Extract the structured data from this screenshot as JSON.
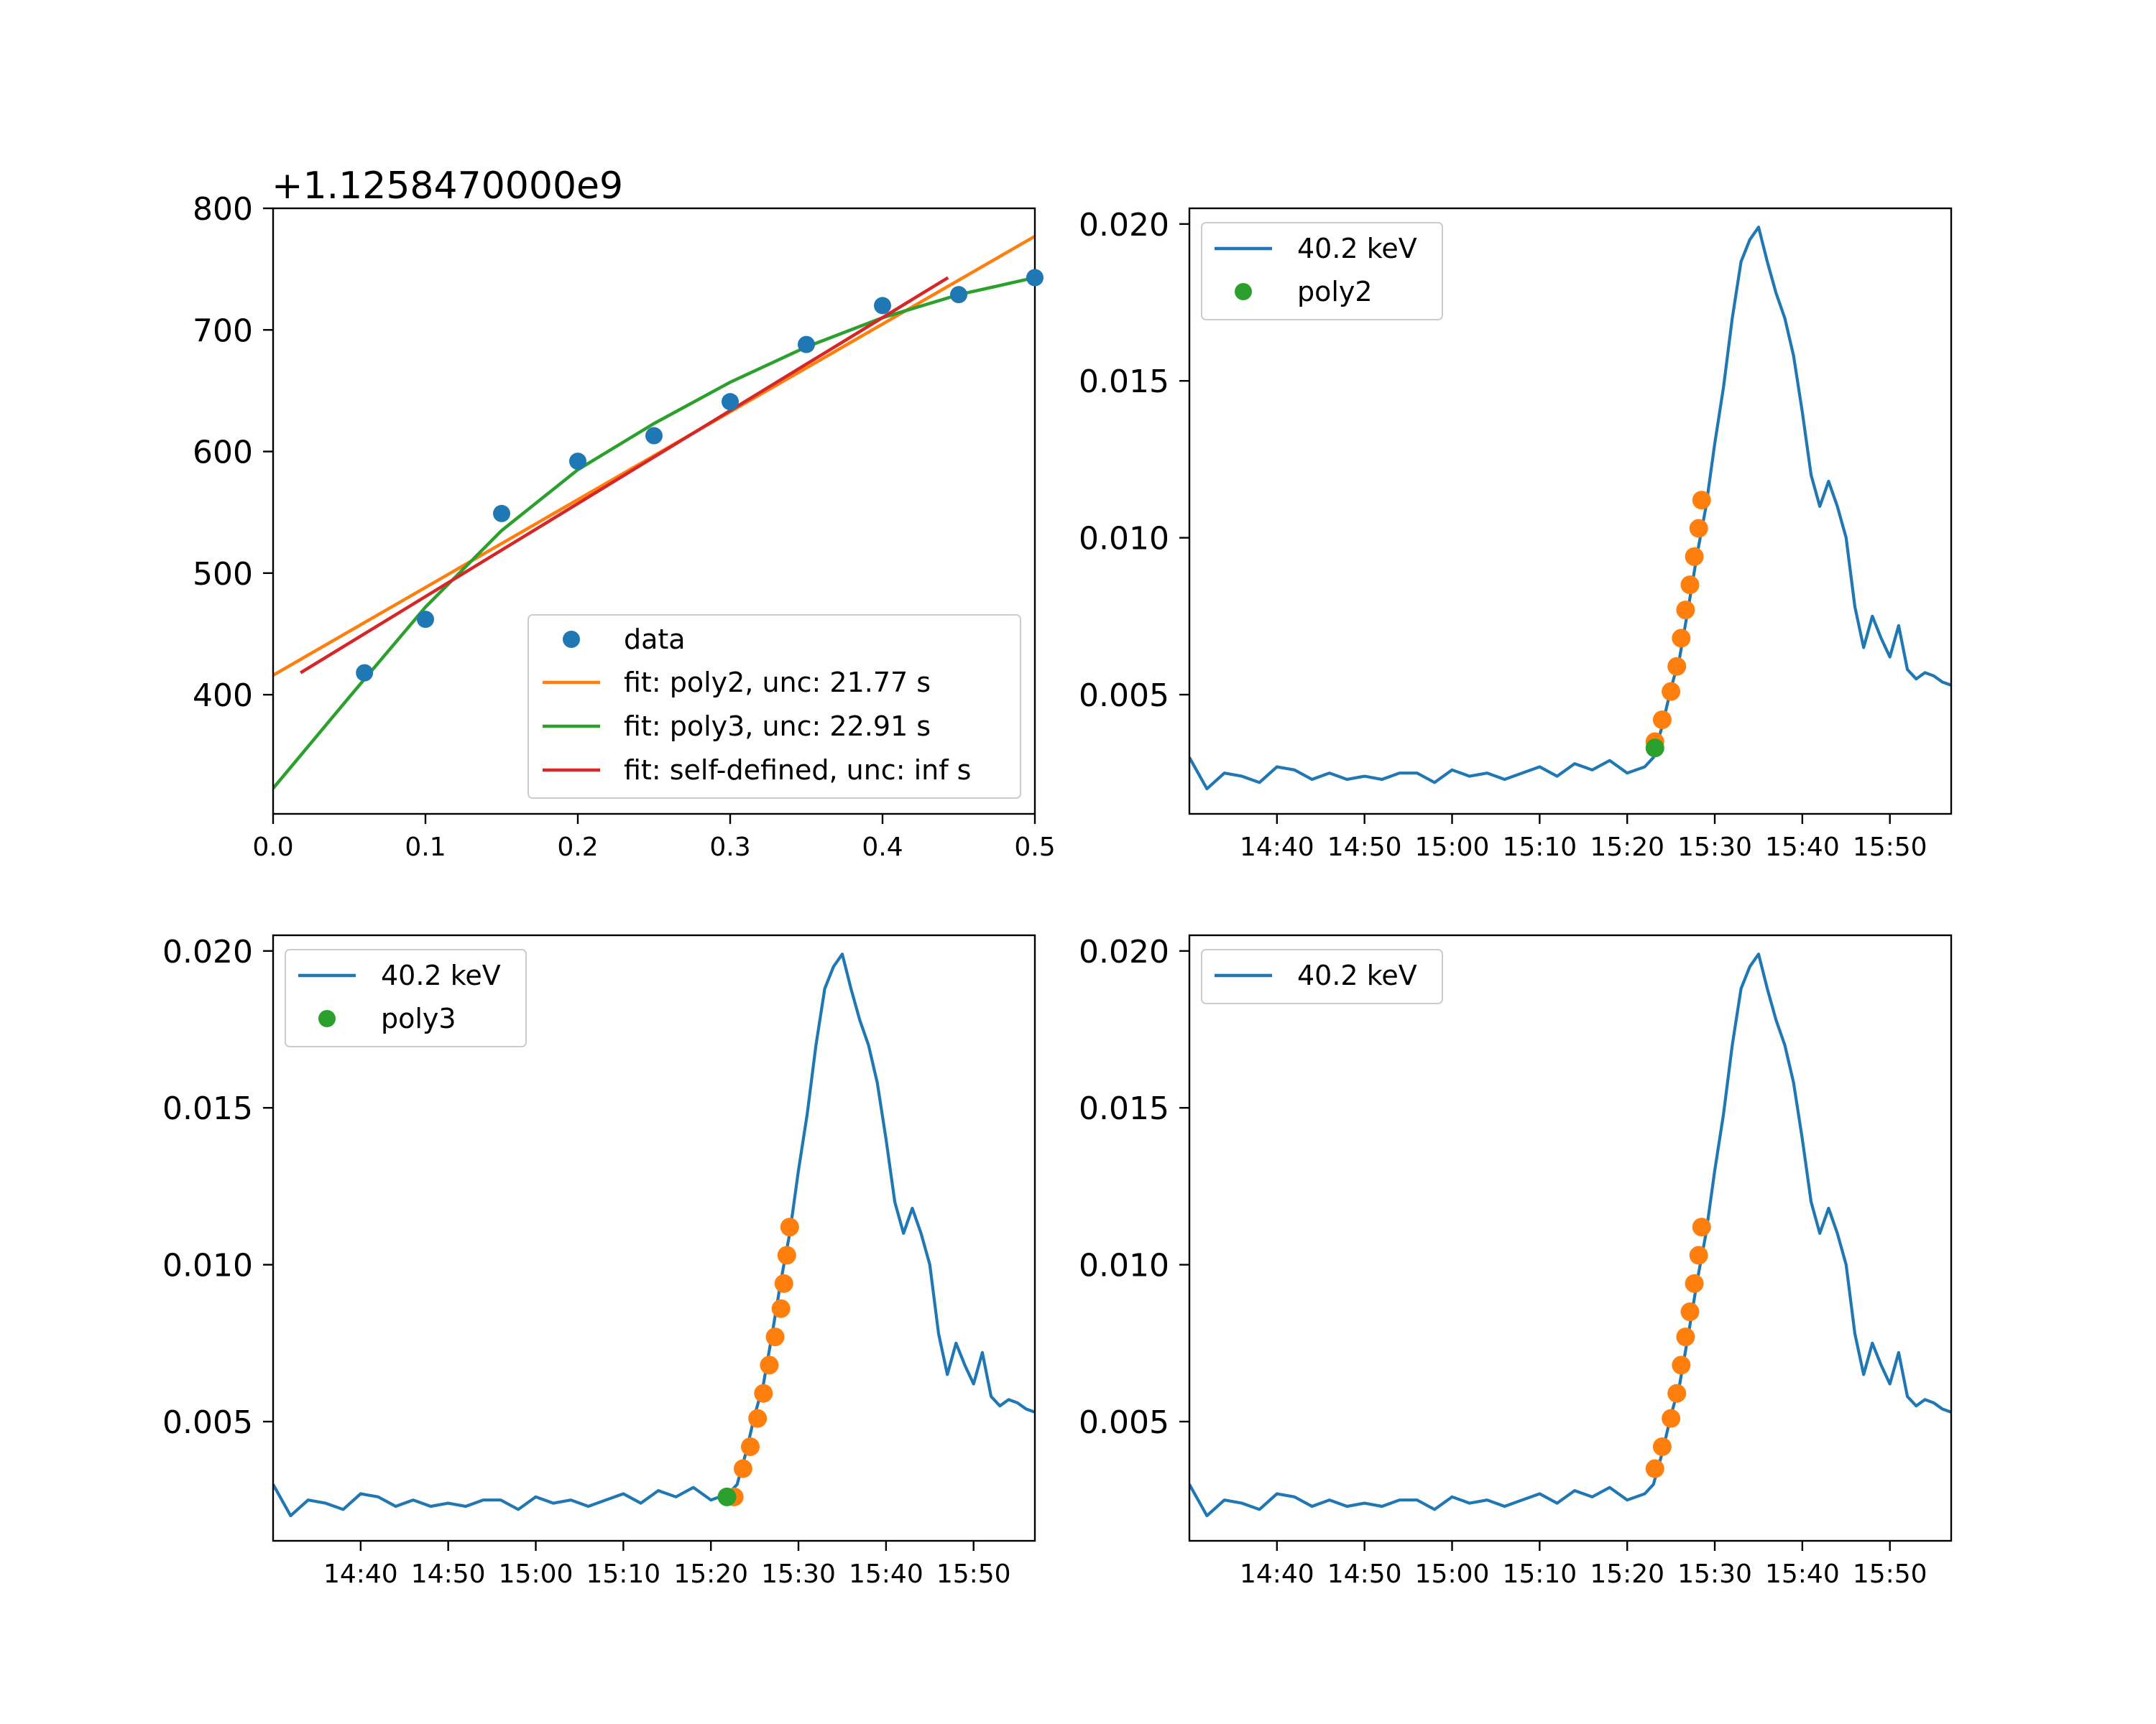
{
  "chart_data": [
    {
      "type": "scatter",
      "offset_text": "+1.1258470000e9",
      "xlim": [
        0.0,
        0.5
      ],
      "ylim": [
        302,
        800
      ],
      "x_ticks": [
        0.0,
        0.1,
        0.2,
        0.3,
        0.4,
        0.5
      ],
      "x_tick_labels": [
        "0.0",
        "0.1",
        "0.2",
        "0.3",
        "0.4",
        "0.5"
      ],
      "y_ticks": [
        400,
        500,
        600,
        700,
        800
      ],
      "y_tick_labels": [
        "400",
        "500",
        "600",
        "700",
        "800"
      ],
      "legend_position": "lower right",
      "series": [
        {
          "name": "data",
          "kind": "points",
          "color": "#1f77b4",
          "x": [
            0.06,
            0.1,
            0.15,
            0.2,
            0.25,
            0.3,
            0.35,
            0.4,
            0.45,
            0.5
          ],
          "y": [
            418,
            462,
            549,
            592,
            613,
            641,
            688,
            720,
            729,
            743
          ]
        },
        {
          "name": "fit: poly2, unc: 21.77 s",
          "kind": "line",
          "color": "#ff7f0e",
          "x": [
            0.0,
            0.5
          ],
          "y": [
            416,
            777
          ]
        },
        {
          "name": "fit: poly3, unc: 22.91 s",
          "kind": "line",
          "color": "#2ca02c",
          "x": [
            0.0,
            0.05,
            0.1,
            0.15,
            0.2,
            0.25,
            0.3,
            0.35,
            0.4,
            0.45,
            0.5
          ],
          "y": [
            323,
            398,
            472,
            535,
            585,
            623,
            657,
            686,
            710,
            729,
            743
          ]
        },
        {
          "name": "fit: self-defined, unc: inf s",
          "kind": "line",
          "color": "#d62728",
          "x": [
            0.018,
            0.443
          ],
          "y": [
            418,
            743
          ]
        }
      ]
    },
    {
      "type": "line",
      "ylim": [
        0.0012,
        0.0205
      ],
      "x_tick_labels": [
        "14:40",
        "14:50",
        "15:00",
        "15:10",
        "15:20",
        "15:30",
        "15:40",
        "15:50"
      ],
      "y_ticks": [
        0.005,
        0.01,
        0.015,
        0.02
      ],
      "y_tick_labels": [
        "0.005",
        "0.010",
        "0.015",
        "0.020"
      ],
      "legend_position": "upper left",
      "legend": [
        "40.2 keV",
        "poly2"
      ],
      "marker_times": [
        "15:23:10",
        "15:24:00",
        "15:25:00",
        "15:25:40",
        "15:26:10",
        "15:26:40",
        "15:27:10",
        "15:27:40",
        "15:28:10",
        "15:28:30"
      ],
      "marker_values": [
        0.0035,
        0.0042,
        0.0051,
        0.0059,
        0.0068,
        0.0077,
        0.0085,
        0.0094,
        0.0103,
        0.0112
      ],
      "special_marker": {
        "time": "15:23:10",
        "value": 0.0033
      }
    },
    {
      "type": "line",
      "ylim": [
        0.0012,
        0.0205
      ],
      "x_tick_labels": [
        "14:40",
        "14:50",
        "15:00",
        "15:10",
        "15:20",
        "15:30",
        "15:40",
        "15:50"
      ],
      "y_ticks": [
        0.005,
        0.01,
        0.015,
        0.02
      ],
      "y_tick_labels": [
        "0.005",
        "0.010",
        "0.015",
        "0.020"
      ],
      "legend_position": "upper left",
      "legend": [
        "40.2 keV",
        "poly3"
      ],
      "marker_times": [
        "15:22:40",
        "15:23:40",
        "15:24:30",
        "15:25:20",
        "15:26:00",
        "15:26:40",
        "15:27:20",
        "15:28:00",
        "15:28:20",
        "15:28:40"
      ],
      "marker_values": [
        0.0026,
        0.0035,
        0.0042,
        0.0051,
        0.0059,
        0.0068,
        0.0077,
        0.0086,
        0.0094,
        0.0103
      ],
      "extra_marker": {
        "time": "15:29:00",
        "value": 0.0112
      },
      "special_marker": {
        "time": "15:21:50",
        "value": 0.0026
      }
    },
    {
      "type": "line",
      "ylim": [
        0.0012,
        0.0205
      ],
      "x_tick_labels": [
        "14:40",
        "14:50",
        "15:00",
        "15:10",
        "15:20",
        "15:30",
        "15:40",
        "15:50"
      ],
      "y_ticks": [
        0.005,
        0.01,
        0.015,
        0.02
      ],
      "y_tick_labels": [
        "0.005",
        "0.010",
        "0.015",
        "0.020"
      ],
      "legend_position": "upper left",
      "legend": [
        "40.2 keV"
      ],
      "marker_times": [
        "15:23:10",
        "15:24:00",
        "15:25:00",
        "15:25:40",
        "15:26:10",
        "15:26:40",
        "15:27:10",
        "15:27:40",
        "15:28:10",
        "15:28:30"
      ],
      "marker_values": [
        0.0035,
        0.0042,
        0.0051,
        0.0059,
        0.0068,
        0.0077,
        0.0085,
        0.0094,
        0.0103,
        0.0112
      ]
    }
  ],
  "time_series": {
    "label": "40.2 keV",
    "color": "#1f77b4",
    "times": [
      "14:30",
      "14:32",
      "14:34",
      "14:36",
      "14:38",
      "14:40",
      "14:42",
      "14:44",
      "14:46",
      "14:48",
      "14:50",
      "14:52",
      "14:54",
      "14:56",
      "14:58",
      "15:00",
      "15:02",
      "15:04",
      "15:06",
      "15:08",
      "15:10",
      "15:12",
      "15:14",
      "15:16",
      "15:18",
      "15:20",
      "15:22",
      "15:23",
      "15:24",
      "15:25",
      "15:26",
      "15:27",
      "15:28",
      "15:29",
      "15:30",
      "15:31",
      "15:32",
      "15:33",
      "15:34",
      "15:35",
      "15:36",
      "15:37",
      "15:38",
      "15:39",
      "15:40",
      "15:41",
      "15:42",
      "15:43",
      "15:44",
      "15:45",
      "15:46",
      "15:47",
      "15:48",
      "15:49",
      "15:50",
      "15:51",
      "15:52",
      "15:53",
      "15:54",
      "15:55",
      "15:56",
      "15:57"
    ],
    "values": [
      0.003,
      0.002,
      0.0025,
      0.0024,
      0.0022,
      0.0027,
      0.0026,
      0.0023,
      0.0025,
      0.0023,
      0.0024,
      0.0023,
      0.0025,
      0.0025,
      0.0022,
      0.0026,
      0.0024,
      0.0025,
      0.0023,
      0.0025,
      0.0027,
      0.0024,
      0.0028,
      0.0026,
      0.0029,
      0.0025,
      0.0027,
      0.003,
      0.004,
      0.0052,
      0.0062,
      0.0078,
      0.0095,
      0.011,
      0.013,
      0.0148,
      0.017,
      0.0188,
      0.0195,
      0.0199,
      0.0188,
      0.0178,
      0.017,
      0.0158,
      0.014,
      0.012,
      0.011,
      0.0118,
      0.011,
      0.01,
      0.0078,
      0.0065,
      0.0075,
      0.0068,
      0.0062,
      0.0072,
      0.0058,
      0.0055,
      0.0057,
      0.0056,
      0.0054,
      0.0053
    ]
  }
}
